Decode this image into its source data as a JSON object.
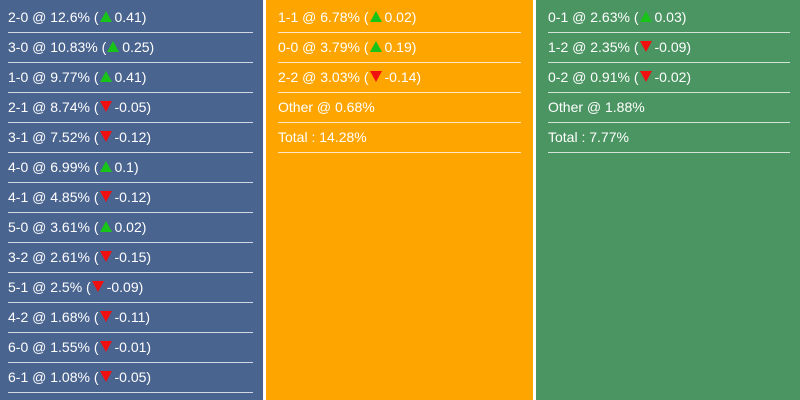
{
  "colors": {
    "home": "#4a6490",
    "draw": "#fea500",
    "away": "#4b9562",
    "up": "#19c419",
    "down": "#f01010"
  },
  "columns": [
    {
      "name": "home",
      "rows": [
        {
          "score": "2-0",
          "pct": "12.6%",
          "dir": "up",
          "change": "0.41"
        },
        {
          "score": "3-0",
          "pct": "10.83%",
          "dir": "up",
          "change": "0.25"
        },
        {
          "score": "1-0",
          "pct": "9.77%",
          "dir": "up",
          "change": "0.41"
        },
        {
          "score": "2-1",
          "pct": "8.74%",
          "dir": "down",
          "change": "-0.05"
        },
        {
          "score": "3-1",
          "pct": "7.52%",
          "dir": "down",
          "change": "-0.12"
        },
        {
          "score": "4-0",
          "pct": "6.99%",
          "dir": "up",
          "change": "0.1"
        },
        {
          "score": "4-1",
          "pct": "4.85%",
          "dir": "down",
          "change": "-0.12"
        },
        {
          "score": "5-0",
          "pct": "3.61%",
          "dir": "up",
          "change": "0.02"
        },
        {
          "score": "3-2",
          "pct": "2.61%",
          "dir": "down",
          "change": "-0.15"
        },
        {
          "score": "5-1",
          "pct": "2.5%",
          "dir": "down",
          "change": "-0.09"
        },
        {
          "score": "4-2",
          "pct": "1.68%",
          "dir": "down",
          "change": "-0.11"
        },
        {
          "score": "6-0",
          "pct": "1.55%",
          "dir": "down",
          "change": "-0.01"
        },
        {
          "score": "6-1",
          "pct": "1.08%",
          "dir": "down",
          "change": "-0.05"
        }
      ],
      "extra": []
    },
    {
      "name": "draw",
      "rows": [
        {
          "score": "1-1",
          "pct": "6.78%",
          "dir": "up",
          "change": "0.02"
        },
        {
          "score": "0-0",
          "pct": "3.79%",
          "dir": "up",
          "change": "0.19"
        },
        {
          "score": "2-2",
          "pct": "3.03%",
          "dir": "down",
          "change": "-0.14"
        }
      ],
      "extra": [
        "Other @ 0.68%",
        "Total : 14.28%"
      ]
    },
    {
      "name": "away",
      "rows": [
        {
          "score": "0-1",
          "pct": "2.63%",
          "dir": "up",
          "change": "0.03"
        },
        {
          "score": "1-2",
          "pct": "2.35%",
          "dir": "down",
          "change": "-0.09"
        },
        {
          "score": "0-2",
          "pct": "0.91%",
          "dir": "down",
          "change": "-0.02"
        }
      ],
      "extra": [
        "Other @ 1.88%",
        "Total : 7.77%"
      ]
    }
  ]
}
